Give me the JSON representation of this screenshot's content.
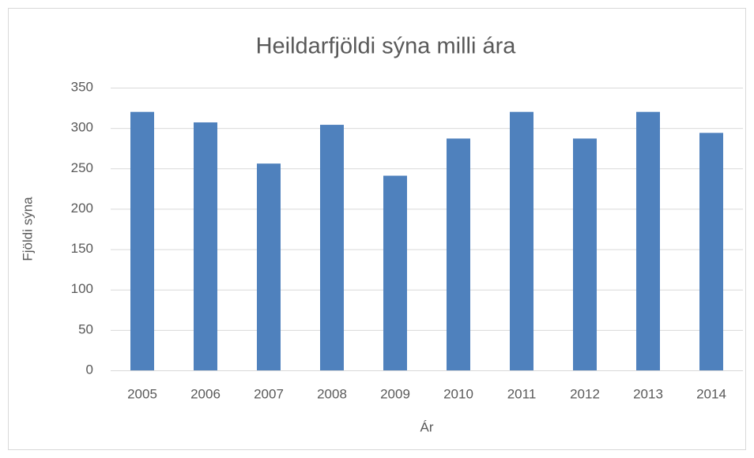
{
  "chart_data": {
    "type": "bar",
    "title": "Heildarfjöldi sýna milli ára",
    "x_label": "Ár",
    "y_label": "Fjöldi sýna",
    "categories": [
      "2005",
      "2006",
      "2007",
      "2008",
      "2009",
      "2010",
      "2011",
      "2012",
      "2013",
      "2014"
    ],
    "values": [
      320,
      307,
      256,
      304,
      241,
      287,
      320,
      287,
      320,
      294
    ],
    "color": "#4f81bd",
    "ylim": [
      0,
      350
    ],
    "yticks": [
      0,
      50,
      100,
      150,
      200,
      250,
      300,
      350
    ],
    "grid": true
  }
}
